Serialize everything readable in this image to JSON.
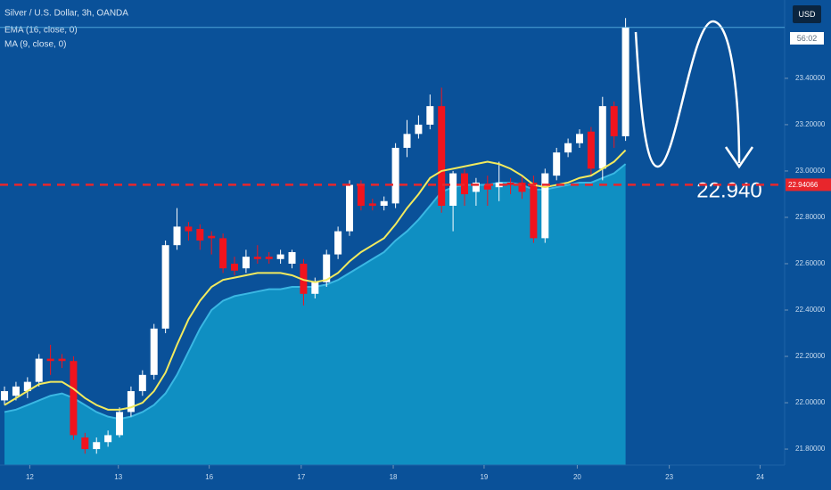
{
  "chart_data": {
    "type": "candlestick",
    "title": "Silver / U.S. Dollar, 3h, OANDA",
    "currency": "USD",
    "countdown": "56:02",
    "x": [
      0,
      1,
      2,
      3,
      4,
      5,
      6,
      7,
      8,
      9,
      10,
      11,
      12,
      13,
      14,
      15,
      16,
      17,
      18,
      19,
      20,
      21,
      22,
      23,
      24,
      25,
      26,
      27,
      28,
      29,
      30,
      31,
      32,
      33,
      34,
      35,
      36,
      37,
      38,
      39,
      40,
      41,
      42,
      43,
      44,
      45,
      46,
      47,
      48,
      49,
      50,
      51,
      52,
      53,
      54
    ],
    "open": [
      22.01,
      22.03,
      22.05,
      22.09,
      22.19,
      22.19,
      22.18,
      21.85,
      21.8,
      21.83,
      21.86,
      21.96,
      22.05,
      22.12,
      22.32,
      22.68,
      22.76,
      22.75,
      22.72,
      22.71,
      22.6,
      22.58,
      22.63,
      22.63,
      22.62,
      22.6,
      22.6,
      22.47,
      22.52,
      22.64,
      22.74,
      22.94,
      22.86,
      22.85,
      22.86,
      23.1,
      23.16,
      23.2,
      23.28,
      22.85,
      22.99,
      22.91,
      22.94,
      22.93,
      22.95,
      22.95,
      22.95,
      22.71,
      22.98,
      23.08,
      23.12,
      23.17,
      23.01,
      23.28,
      23.15
    ],
    "high": [
      22.07,
      22.09,
      22.11,
      22.21,
      22.25,
      22.21,
      22.2,
      21.87,
      21.85,
      21.88,
      21.98,
      22.07,
      22.14,
      22.34,
      22.7,
      22.84,
      22.78,
      22.77,
      22.74,
      22.73,
      22.63,
      22.66,
      22.68,
      22.65,
      22.66,
      22.66,
      22.62,
      22.54,
      22.66,
      22.76,
      22.96,
      22.96,
      22.88,
      22.89,
      23.12,
      23.22,
      23.24,
      23.33,
      23.36,
      23.0,
      23.01,
      22.97,
      22.98,
      23.04,
      22.97,
      22.98,
      22.98,
      23.01,
      23.1,
      23.14,
      23.18,
      23.19,
      23.32,
      23.3,
      23.66
    ],
    "low": [
      21.99,
      22.01,
      22.02,
      22.07,
      22.12,
      22.15,
      21.84,
      21.78,
      21.78,
      21.81,
      21.85,
      21.94,
      22.03,
      22.1,
      22.3,
      22.66,
      22.7,
      22.66,
      22.64,
      22.56,
      22.55,
      22.56,
      22.6,
      22.6,
      22.6,
      22.58,
      22.42,
      22.45,
      22.5,
      22.62,
      22.72,
      22.83,
      22.83,
      22.83,
      22.84,
      23.06,
      23.14,
      23.18,
      22.82,
      22.74,
      22.85,
      22.85,
      22.85,
      22.87,
      22.9,
      22.88,
      22.69,
      22.69,
      22.96,
      23.06,
      23.1,
      22.98,
      22.96,
      23.1,
      23.13
    ],
    "close": [
      22.05,
      22.07,
      22.09,
      22.19,
      22.18,
      22.18,
      21.86,
      21.8,
      21.83,
      21.86,
      21.96,
      22.05,
      22.12,
      22.32,
      22.68,
      22.76,
      22.74,
      22.7,
      22.71,
      22.58,
      22.57,
      22.63,
      22.62,
      22.62,
      22.64,
      22.65,
      22.47,
      22.52,
      22.64,
      22.74,
      22.94,
      22.85,
      22.85,
      22.87,
      23.1,
      23.16,
      23.2,
      23.28,
      22.85,
      22.99,
      22.9,
      22.95,
      22.92,
      22.95,
      22.94,
      22.91,
      22.71,
      22.99,
      23.08,
      23.12,
      23.16,
      23.01,
      23.28,
      23.15,
      23.62
    ],
    "up_color": "#ffffff",
    "down_color": "#f0141e",
    "series": [
      {
        "name": "EMA (16, close, 0)",
        "color": "#f2ea5e",
        "style": "line",
        "values": [
          21.99,
          22.02,
          22.05,
          22.08,
          22.09,
          22.09,
          22.06,
          22.02,
          21.99,
          21.97,
          21.97,
          21.98,
          22.0,
          22.05,
          22.13,
          22.25,
          22.36,
          22.44,
          22.5,
          22.53,
          22.54,
          22.55,
          22.56,
          22.56,
          22.56,
          22.55,
          22.53,
          22.52,
          22.53,
          22.56,
          22.61,
          22.65,
          22.68,
          22.71,
          22.77,
          22.84,
          22.9,
          22.97,
          23.0,
          23.01,
          23.02,
          23.03,
          23.04,
          23.03,
          23.01,
          22.98,
          22.94,
          22.93,
          22.94,
          22.95,
          22.97,
          22.98,
          23.01,
          23.04,
          23.09
        ]
      },
      {
        "name": "MA (9, close, 0)",
        "color": "#0f8fc2",
        "style": "area",
        "values": [
          21.96,
          21.97,
          21.99,
          22.01,
          22.03,
          22.04,
          22.02,
          21.99,
          21.96,
          21.94,
          21.93,
          21.94,
          21.96,
          21.99,
          22.04,
          22.12,
          22.22,
          22.32,
          22.4,
          22.44,
          22.46,
          22.47,
          22.48,
          22.49,
          22.49,
          22.5,
          22.5,
          22.5,
          22.51,
          22.53,
          22.56,
          22.59,
          22.62,
          22.65,
          22.7,
          22.74,
          22.79,
          22.85,
          22.91,
          22.93,
          22.94,
          22.94,
          22.94,
          22.95,
          22.95,
          22.94,
          22.92,
          22.92,
          22.93,
          22.94,
          22.95,
          22.95,
          22.97,
          22.99,
          23.03
        ]
      }
    ],
    "hline": {
      "value": 22.94066,
      "label": "22.94066",
      "color": "#e8262c"
    },
    "annotation": "22.940",
    "xlim": [
      -0.39,
      67.83
    ],
    "xticks": [
      {
        "value": 2.2,
        "label": "12"
      },
      {
        "value": 9.9,
        "label": "13"
      },
      {
        "value": 17.8,
        "label": "16"
      },
      {
        "value": 25.8,
        "label": "17"
      },
      {
        "value": 33.8,
        "label": "18"
      },
      {
        "value": 41.7,
        "label": "19"
      },
      {
        "value": 49.8,
        "label": "20"
      },
      {
        "value": 57.8,
        "label": "23"
      },
      {
        "value": 65.7,
        "label": "24"
      }
    ],
    "ylim": [
      21.731,
      23.738
    ],
    "yticks": [
      {
        "value": 21.8,
        "label": "21.80000"
      },
      {
        "value": 22.0,
        "label": "22.00000"
      },
      {
        "value": 22.2,
        "label": "22.20000"
      },
      {
        "value": 22.4,
        "label": "22.40000"
      },
      {
        "value": 22.6,
        "label": "22.60000"
      },
      {
        "value": 22.8,
        "label": "22.80000"
      },
      {
        "value": 23.0,
        "label": "23.00000"
      },
      {
        "value": 23.2,
        "label": "23.20000"
      },
      {
        "value": 23.4,
        "label": "23.40000"
      }
    ]
  }
}
